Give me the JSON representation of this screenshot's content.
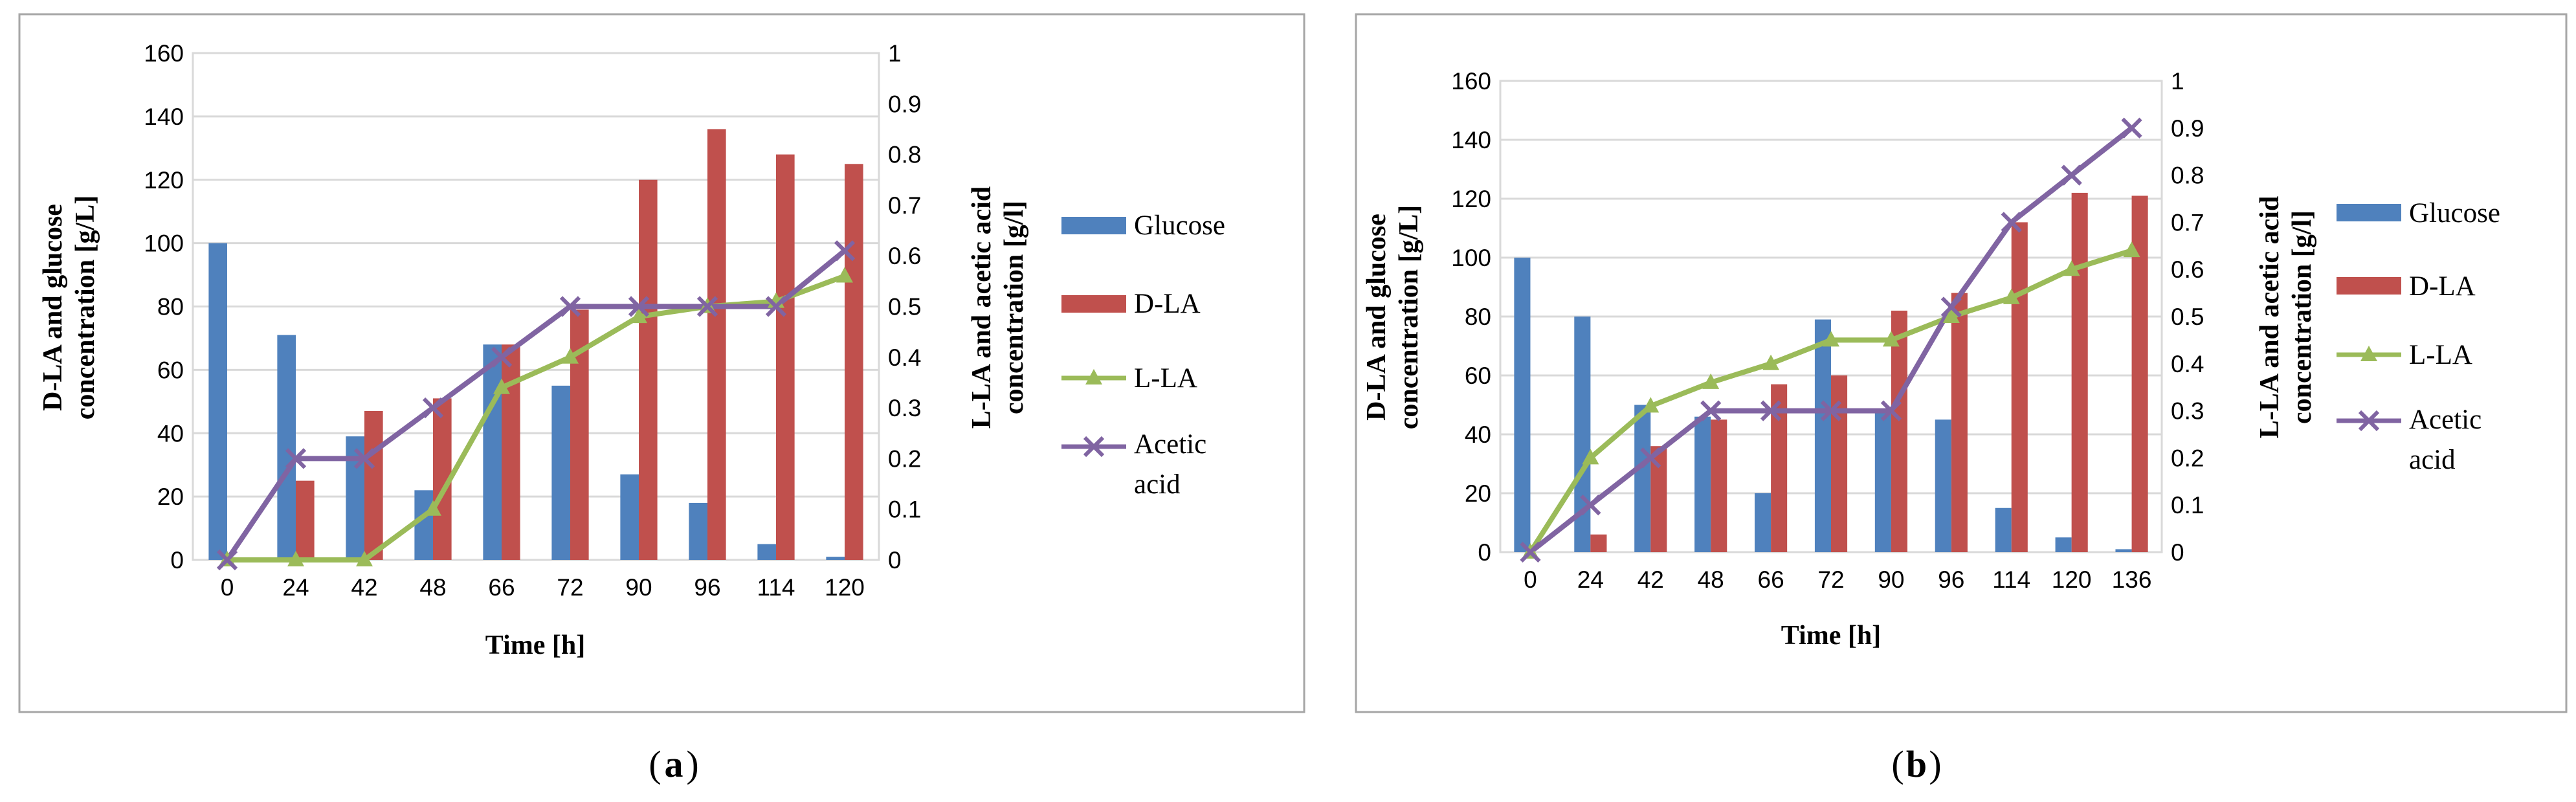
{
  "colors": {
    "glucose": "#4F81BD",
    "d_la": "#C0504D",
    "l_la": "#9BBB59",
    "acetic": "#8064A2",
    "grid": "#D9D9D9",
    "frame": "#A6A6A6"
  },
  "chart_data": [
    {
      "type": "bar",
      "panel_label": "a",
      "categories": [
        "0",
        "24",
        "42",
        "48",
        "66",
        "72",
        "90",
        "96",
        "114",
        "120"
      ],
      "xlabel": "Time [h]",
      "ylabel_lines": [
        "D-LA and glucose",
        "concentration [g/L]"
      ],
      "y2label_lines": [
        "L-LA and acetic acid",
        "concentration [g/l]"
      ],
      "ylim": [
        0,
        160
      ],
      "yticks": [
        0,
        20,
        40,
        60,
        80,
        100,
        120,
        140,
        160
      ],
      "y2lim": [
        0,
        1
      ],
      "y2ticks": [
        0,
        0.1,
        0.2,
        0.3,
        0.4,
        0.5,
        0.6,
        0.7,
        0.8,
        0.9,
        1
      ],
      "series": [
        {
          "name": "Glucose",
          "kind": "bar",
          "axis": "left",
          "values": [
            100,
            71,
            39,
            22,
            68,
            55,
            27,
            18,
            5,
            1
          ]
        },
        {
          "name": "D-LA",
          "kind": "bar",
          "axis": "left",
          "values": [
            0,
            25,
            47,
            51,
            68,
            79,
            120,
            136,
            128,
            125
          ]
        },
        {
          "name": "L-LA",
          "kind": "line",
          "marker": "triangle",
          "axis": "right",
          "values": [
            0,
            0,
            0,
            0.1,
            0.34,
            0.4,
            0.48,
            0.5,
            0.51,
            0.56
          ]
        },
        {
          "name": "Acetic acid",
          "legend_lines": [
            "Acetic",
            "acid"
          ],
          "kind": "line",
          "marker": "x",
          "axis": "right",
          "values": [
            0,
            0.2,
            0.2,
            0.3,
            0.4,
            0.5,
            0.5,
            0.5,
            0.5,
            0.61
          ]
        }
      ]
    },
    {
      "type": "bar",
      "panel_label": "b",
      "categories": [
        "0",
        "24",
        "42",
        "48",
        "66",
        "72",
        "90",
        "96",
        "114",
        "120",
        "136"
      ],
      "xlabel": "Time [h]",
      "ylabel_lines": [
        "D-LA and glucose",
        "concentration [g/L]"
      ],
      "y2label_lines": [
        "L-LA and acetic acid",
        "concentration [g/l]"
      ],
      "ylim": [
        0,
        160
      ],
      "yticks": [
        0,
        20,
        40,
        60,
        80,
        100,
        120,
        140,
        160
      ],
      "y2lim": [
        0,
        1
      ],
      "y2ticks": [
        0,
        0.1,
        0.2,
        0.3,
        0.4,
        0.5,
        0.6,
        0.7,
        0.8,
        0.9,
        1
      ],
      "series": [
        {
          "name": "Glucose",
          "kind": "bar",
          "axis": "left",
          "values": [
            100,
            80,
            50,
            46,
            20,
            79,
            48,
            45,
            15,
            5,
            1
          ]
        },
        {
          "name": "D-LA",
          "kind": "bar",
          "axis": "left",
          "values": [
            0,
            6,
            36,
            45,
            57,
            60,
            82,
            88,
            112,
            122,
            121
          ]
        },
        {
          "name": "L-LA",
          "kind": "line",
          "marker": "triangle",
          "axis": "right",
          "values": [
            0,
            0.2,
            0.31,
            0.36,
            0.4,
            0.45,
            0.45,
            0.5,
            0.54,
            0.6,
            0.64
          ]
        },
        {
          "name": "Acetic acid",
          "legend_lines": [
            "Acetic",
            "acid"
          ],
          "kind": "line",
          "marker": "x",
          "axis": "right",
          "values": [
            0,
            0.1,
            0.2,
            0.3,
            0.3,
            0.3,
            0.3,
            0.52,
            0.7,
            0.8,
            0.9
          ]
        }
      ]
    }
  ]
}
